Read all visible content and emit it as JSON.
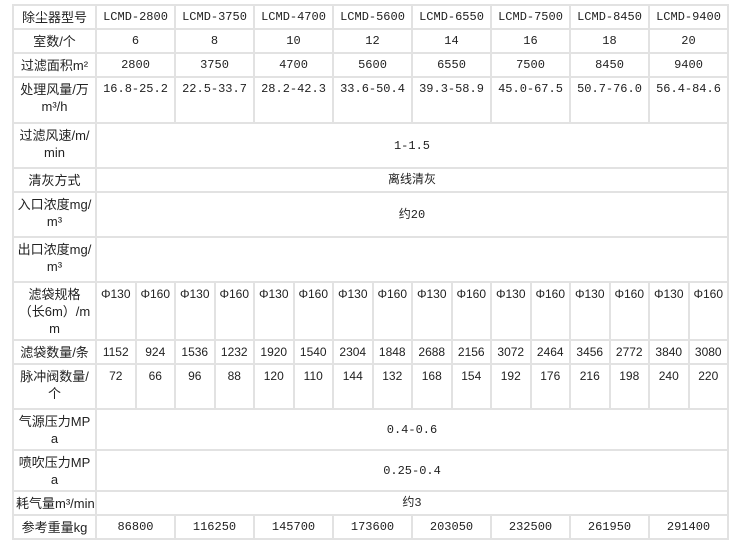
{
  "table": {
    "rows": [
      {
        "label": "除尘器型号",
        "kind": "model",
        "values": [
          "LCMD-2800",
          "LCMD-3750",
          "LCMD-4700",
          "LCMD-5600",
          "LCMD-6550",
          "LCMD-7500",
          "LCMD-8450",
          "LCMD-9400"
        ]
      },
      {
        "label": "室数/个",
        "kind": "model",
        "values": [
          "6",
          "8",
          "10",
          "12",
          "14",
          "16",
          "18",
          "20"
        ]
      },
      {
        "label": "过滤面积m²",
        "kind": "model",
        "values": [
          "2800",
          "3750",
          "4700",
          "5600",
          "6550",
          "7500",
          "8450",
          "9400"
        ]
      },
      {
        "label": "处理风量/万m³/h",
        "kind": "model",
        "values": [
          "16.8-25.2",
          "22.5-33.7",
          "28.2-42.3",
          "33.6-50.4",
          "39.3-58.9",
          "45.0-67.5",
          "50.7-76.0",
          "56.4-84.6"
        ]
      },
      {
        "label": "过滤风速/m/min",
        "kind": "span",
        "value": "1-1.5"
      },
      {
        "label": "清灰方式",
        "kind": "span",
        "value": "离线清灰"
      },
      {
        "label": "入口浓度mg/m³",
        "kind": "span",
        "value": "约20"
      },
      {
        "label": "出口浓度mg/m³",
        "kind": "span",
        "value": ""
      },
      {
        "label": "滤袋规格（长6m）/mm",
        "kind": "bag",
        "values": [
          "Φ130",
          "Φ160",
          "Φ130",
          "Φ160",
          "Φ130",
          "Φ160",
          "Φ130",
          "Φ160",
          "Φ130",
          "Φ160",
          "Φ130",
          "Φ160",
          "Φ130",
          "Φ160",
          "Φ130",
          "Φ160"
        ]
      },
      {
        "label": "滤袋数量/条",
        "kind": "bag",
        "values": [
          "1152",
          "924",
          "1536",
          "1232",
          "1920",
          "1540",
          "2304",
          "1848",
          "2688",
          "2156",
          "3072",
          "2464",
          "3456",
          "2772",
          "3840",
          "3080"
        ]
      },
      {
        "label": "脉冲阀数量/个",
        "kind": "bag",
        "values": [
          "72",
          "66",
          "96",
          "88",
          "120",
          "110",
          "144",
          "132",
          "168",
          "154",
          "192",
          "176",
          "216",
          "198",
          "240",
          "220"
        ]
      },
      {
        "label": "气源压力MPa",
        "kind": "span",
        "value": "0.4-0.6"
      },
      {
        "label": "喷吹压力MPa",
        "kind": "span",
        "value": "0.25-0.4"
      },
      {
        "label": "耗气量m³/min",
        "kind": "span",
        "value": "约3"
      },
      {
        "label": "参考重量kg",
        "kind": "model",
        "values": [
          "86800",
          "116250",
          "145700",
          "173600",
          "203050",
          "232500",
          "261950",
          "291400"
        ]
      }
    ]
  },
  "colors": {
    "border": "#e2e2e2",
    "text": "#222222"
  }
}
